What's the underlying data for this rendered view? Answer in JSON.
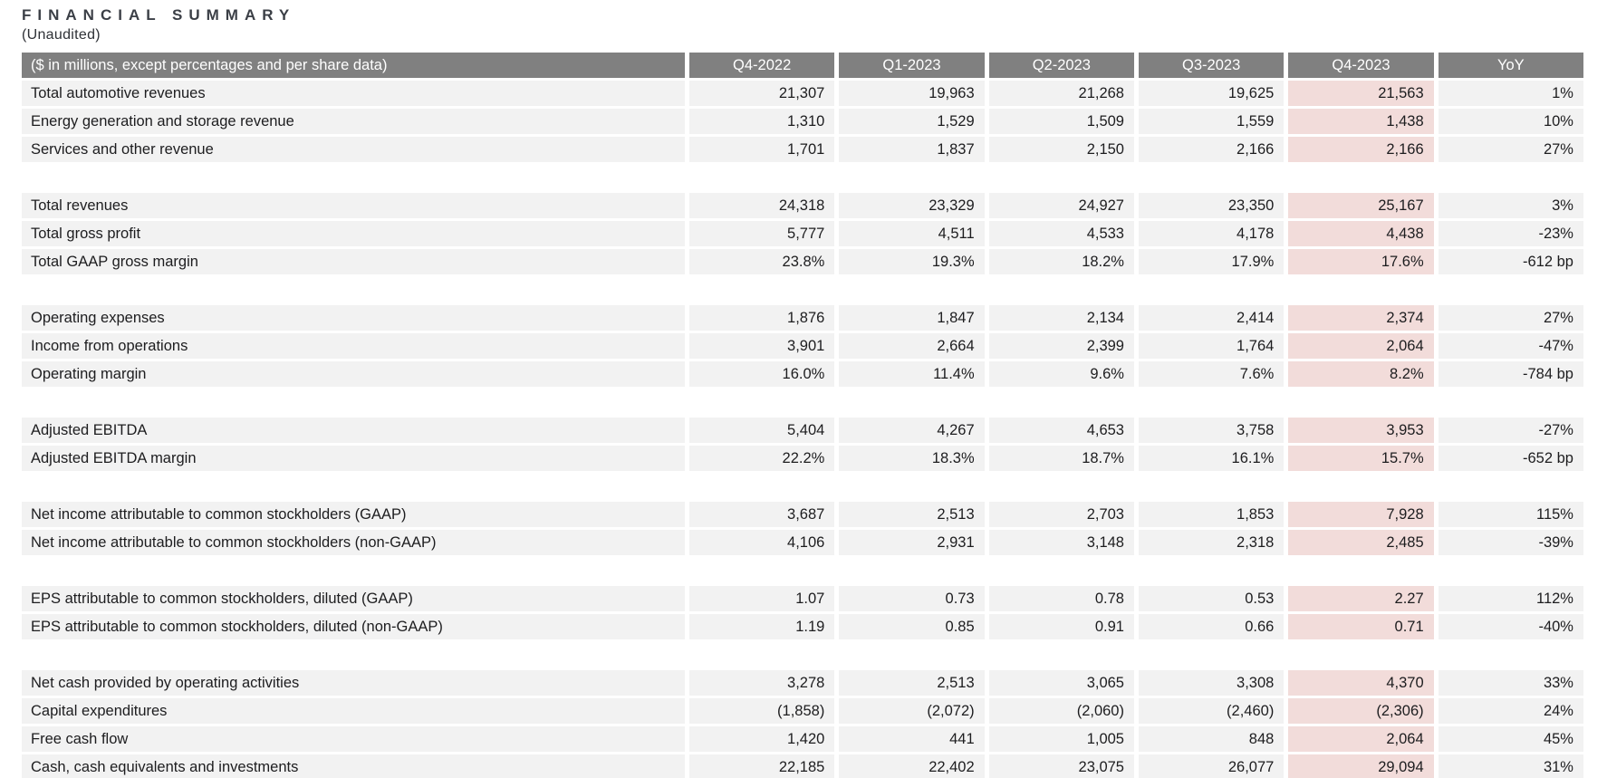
{
  "page": {
    "title": "FINANCIAL SUMMARY",
    "subtitle": "(Unaudited)"
  },
  "colors": {
    "header_background": "#808080",
    "header_text": "#ffffff",
    "row_background": "#f2f2f2",
    "highlight_column_background": "#f2dcda",
    "body_text": "#1d1d1f",
    "title_text": "#3b3f46"
  },
  "table": {
    "header": {
      "label": "($ in millions, except percentages and per share data)",
      "columns": [
        "Q4-2022",
        "Q1-2023",
        "Q2-2023",
        "Q3-2023",
        "Q4-2023",
        "YoY"
      ],
      "highlighted_column": "Q4-2023"
    },
    "groups": [
      {
        "rows": [
          {
            "label": "Total automotive revenues",
            "values": [
              "21,307",
              "19,963",
              "21,268",
              "19,625",
              "21,563",
              "1%"
            ]
          },
          {
            "label": "Energy generation and storage revenue",
            "values": [
              "1,310",
              "1,529",
              "1,509",
              "1,559",
              "1,438",
              "10%"
            ]
          },
          {
            "label": "Services and other revenue",
            "values": [
              "1,701",
              "1,837",
              "2,150",
              "2,166",
              "2,166",
              "27%"
            ]
          }
        ]
      },
      {
        "rows": [
          {
            "label": "Total revenues",
            "values": [
              "24,318",
              "23,329",
              "24,927",
              "23,350",
              "25,167",
              "3%"
            ]
          },
          {
            "label": "Total gross profit",
            "values": [
              "5,777",
              "4,511",
              "4,533",
              "4,178",
              "4,438",
              "-23%"
            ]
          },
          {
            "label": "Total GAAP gross margin",
            "values": [
              "23.8%",
              "19.3%",
              "18.2%",
              "17.9%",
              "17.6%",
              "-612 bp"
            ]
          }
        ]
      },
      {
        "rows": [
          {
            "label": "Operating expenses",
            "values": [
              "1,876",
              "1,847",
              "2,134",
              "2,414",
              "2,374",
              "27%"
            ]
          },
          {
            "label": "Income from operations",
            "values": [
              "3,901",
              "2,664",
              "2,399",
              "1,764",
              "2,064",
              "-47%"
            ]
          },
          {
            "label": "Operating margin",
            "values": [
              "16.0%",
              "11.4%",
              "9.6%",
              "7.6%",
              "8.2%",
              "-784 bp"
            ]
          }
        ]
      },
      {
        "rows": [
          {
            "label": "Adjusted EBITDA",
            "values": [
              "5,404",
              "4,267",
              "4,653",
              "3,758",
              "3,953",
              "-27%"
            ]
          },
          {
            "label": "Adjusted EBITDA margin",
            "values": [
              "22.2%",
              "18.3%",
              "18.7%",
              "16.1%",
              "15.7%",
              "-652 bp"
            ]
          }
        ]
      },
      {
        "rows": [
          {
            "label": "Net income attributable to common stockholders (GAAP)",
            "values": [
              "3,687",
              "2,513",
              "2,703",
              "1,853",
              "7,928",
              "115%"
            ]
          },
          {
            "label": "Net income attributable to common stockholders (non-GAAP)",
            "values": [
              "4,106",
              "2,931",
              "3,148",
              "2,318",
              "2,485",
              "-39%"
            ]
          }
        ]
      },
      {
        "rows": [
          {
            "label": "EPS attributable to common stockholders, diluted (GAAP)",
            "values": [
              "1.07",
              "0.73",
              "0.78",
              "0.53",
              "2.27",
              "112%"
            ]
          },
          {
            "label": "EPS attributable to common stockholders, diluted (non-GAAP)",
            "values": [
              "1.19",
              "0.85",
              "0.91",
              "0.66",
              "0.71",
              "-40%"
            ]
          }
        ]
      },
      {
        "rows": [
          {
            "label": "Net cash provided by operating activities",
            "values": [
              "3,278",
              "2,513",
              "3,065",
              "3,308",
              "4,370",
              "33%"
            ]
          },
          {
            "label": "Capital expenditures",
            "values": [
              "(1,858)",
              "(2,072)",
              "(2,060)",
              "(2,460)",
              "(2,306)",
              "24%"
            ]
          },
          {
            "label": "Free cash flow",
            "values": [
              "1,420",
              "441",
              "1,005",
              "848",
              "2,064",
              "45%"
            ]
          },
          {
            "label": "Cash, cash equivalents and investments",
            "values": [
              "22,185",
              "22,402",
              "23,075",
              "26,077",
              "29,094",
              "31%"
            ]
          }
        ]
      }
    ]
  }
}
